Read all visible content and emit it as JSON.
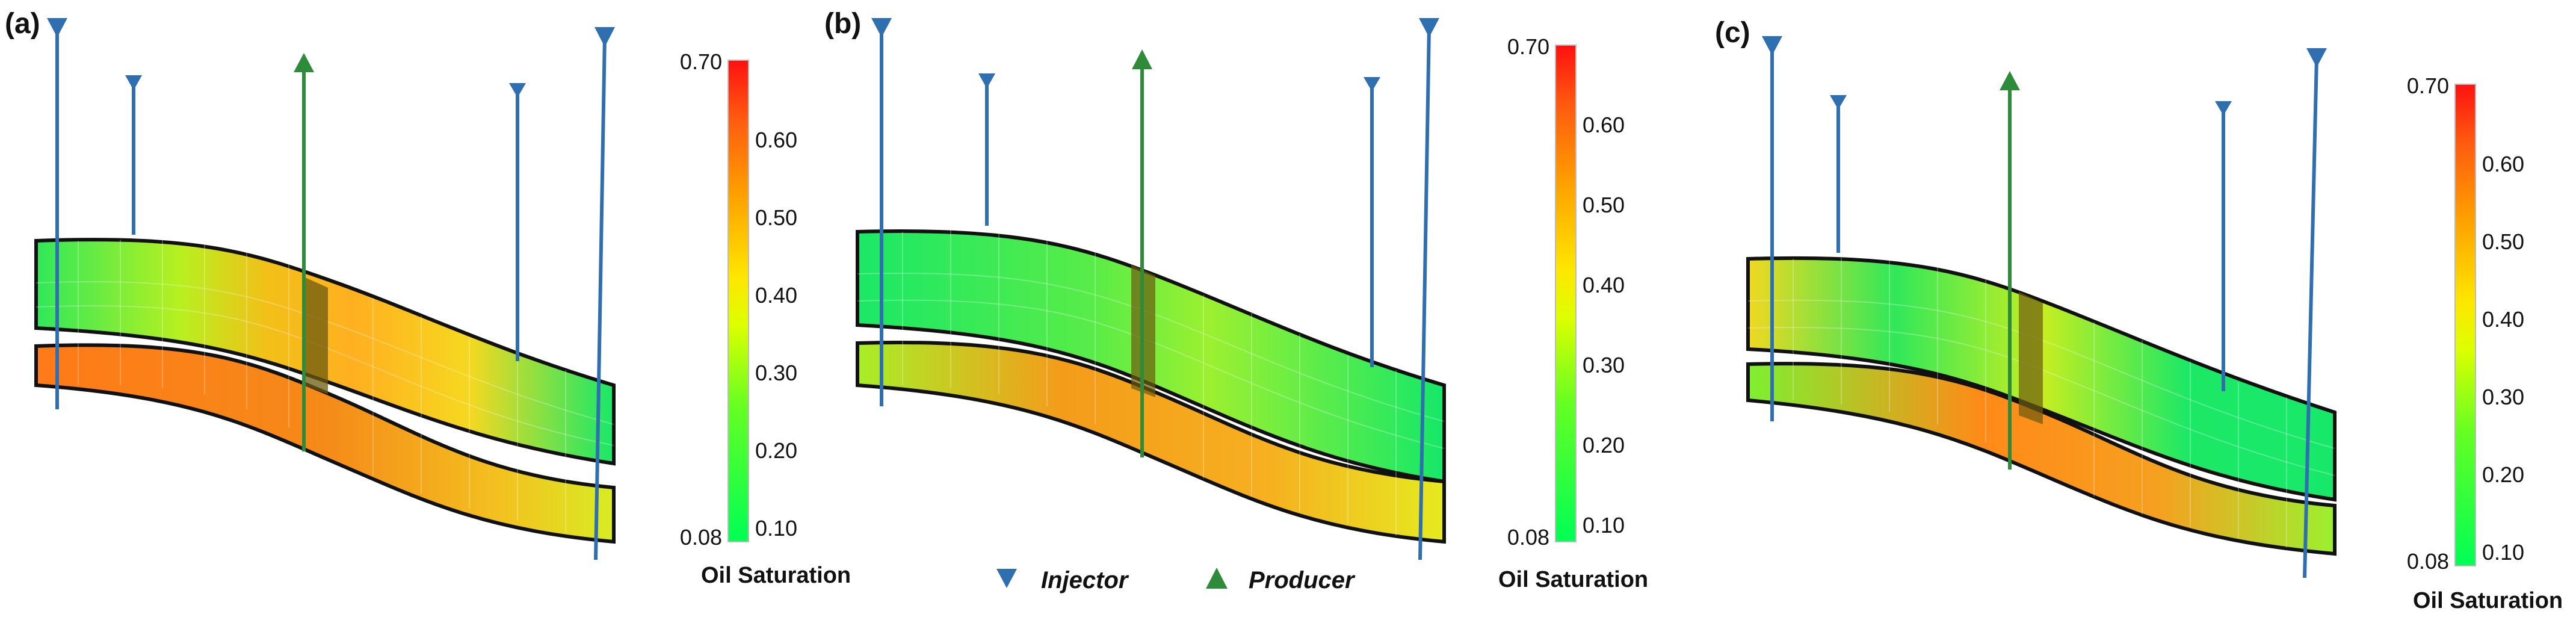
{
  "panels": [
    {
      "label": "(a)"
    },
    {
      "label": "(b)"
    },
    {
      "label": "(c)"
    }
  ],
  "colorbar": {
    "title": "Oil Saturation",
    "max_label": "0.70",
    "min_label": "0.08",
    "ticks": [
      "0.60",
      "0.50",
      "0.40",
      "0.30",
      "0.20",
      "0.10"
    ]
  },
  "legend": {
    "injector": "Injector",
    "producer": "Producer"
  },
  "colors": {
    "injector": "#2f6fb0",
    "producer": "#2e8b3a",
    "scale_low": "#00ff55",
    "scale_mid": "#ffee00",
    "scale_high": "#ff1a1a"
  }
}
